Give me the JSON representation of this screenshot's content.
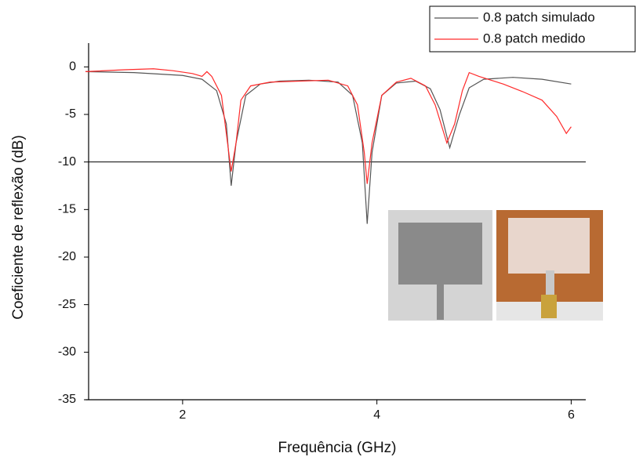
{
  "chart_data": {
    "type": "line",
    "x_label": "Frequência (GHz)",
    "y_label": "Coeficiente de reflexão (dB)",
    "xlim": [
      1,
      6.15
    ],
    "ylim": [
      -35,
      2.5
    ],
    "xticks": [
      2,
      4,
      6
    ],
    "yticks": [
      0,
      -5,
      -10,
      -15,
      -20,
      -25,
      -30,
      -35
    ],
    "hline": -10,
    "legend": "top-right",
    "series": [
      {
        "name": "0.8 patch simulado",
        "color": "#555555",
        "x": [
          1.0,
          1.5,
          2.0,
          2.2,
          2.35,
          2.45,
          2.5,
          2.55,
          2.65,
          2.8,
          3.0,
          3.3,
          3.6,
          3.75,
          3.85,
          3.9,
          3.95,
          4.05,
          4.2,
          4.4,
          4.55,
          4.65,
          4.75,
          4.85,
          4.95,
          5.1,
          5.4,
          5.7,
          6.0
        ],
        "values": [
          -0.5,
          -0.6,
          -0.9,
          -1.3,
          -2.5,
          -6,
          -12.5,
          -8,
          -3,
          -1.8,
          -1.5,
          -1.4,
          -1.6,
          -3,
          -8,
          -16.5,
          -9,
          -3,
          -1.7,
          -1.5,
          -2.3,
          -4.5,
          -8.5,
          -5,
          -2.2,
          -1.3,
          -1.1,
          -1.3,
          -1.8
        ]
      },
      {
        "name": "0.8 patch medido",
        "color": "#ff2a2a",
        "x": [
          1.0,
          1.4,
          1.7,
          1.9,
          2.1,
          2.2,
          2.25,
          2.3,
          2.4,
          2.45,
          2.5,
          2.55,
          2.6,
          2.7,
          2.9,
          3.2,
          3.5,
          3.7,
          3.8,
          3.87,
          3.9,
          3.95,
          4.05,
          4.2,
          4.35,
          4.5,
          4.6,
          4.72,
          4.8,
          4.88,
          4.95,
          5.05,
          5.3,
          5.5,
          5.7,
          5.85,
          5.95,
          6.0
        ],
        "values": [
          -0.5,
          -0.3,
          -0.2,
          -0.4,
          -0.7,
          -1.0,
          -0.5,
          -1.0,
          -3,
          -7,
          -11,
          -8,
          -3.5,
          -2,
          -1.6,
          -1.5,
          -1.4,
          -2,
          -4,
          -9,
          -12.3,
          -8,
          -3,
          -1.6,
          -1.2,
          -2,
          -4,
          -8,
          -6,
          -2.5,
          -0.6,
          -1.0,
          -1.8,
          -2.6,
          -3.5,
          -5.2,
          -7,
          -6.3
        ]
      }
    ]
  }
}
